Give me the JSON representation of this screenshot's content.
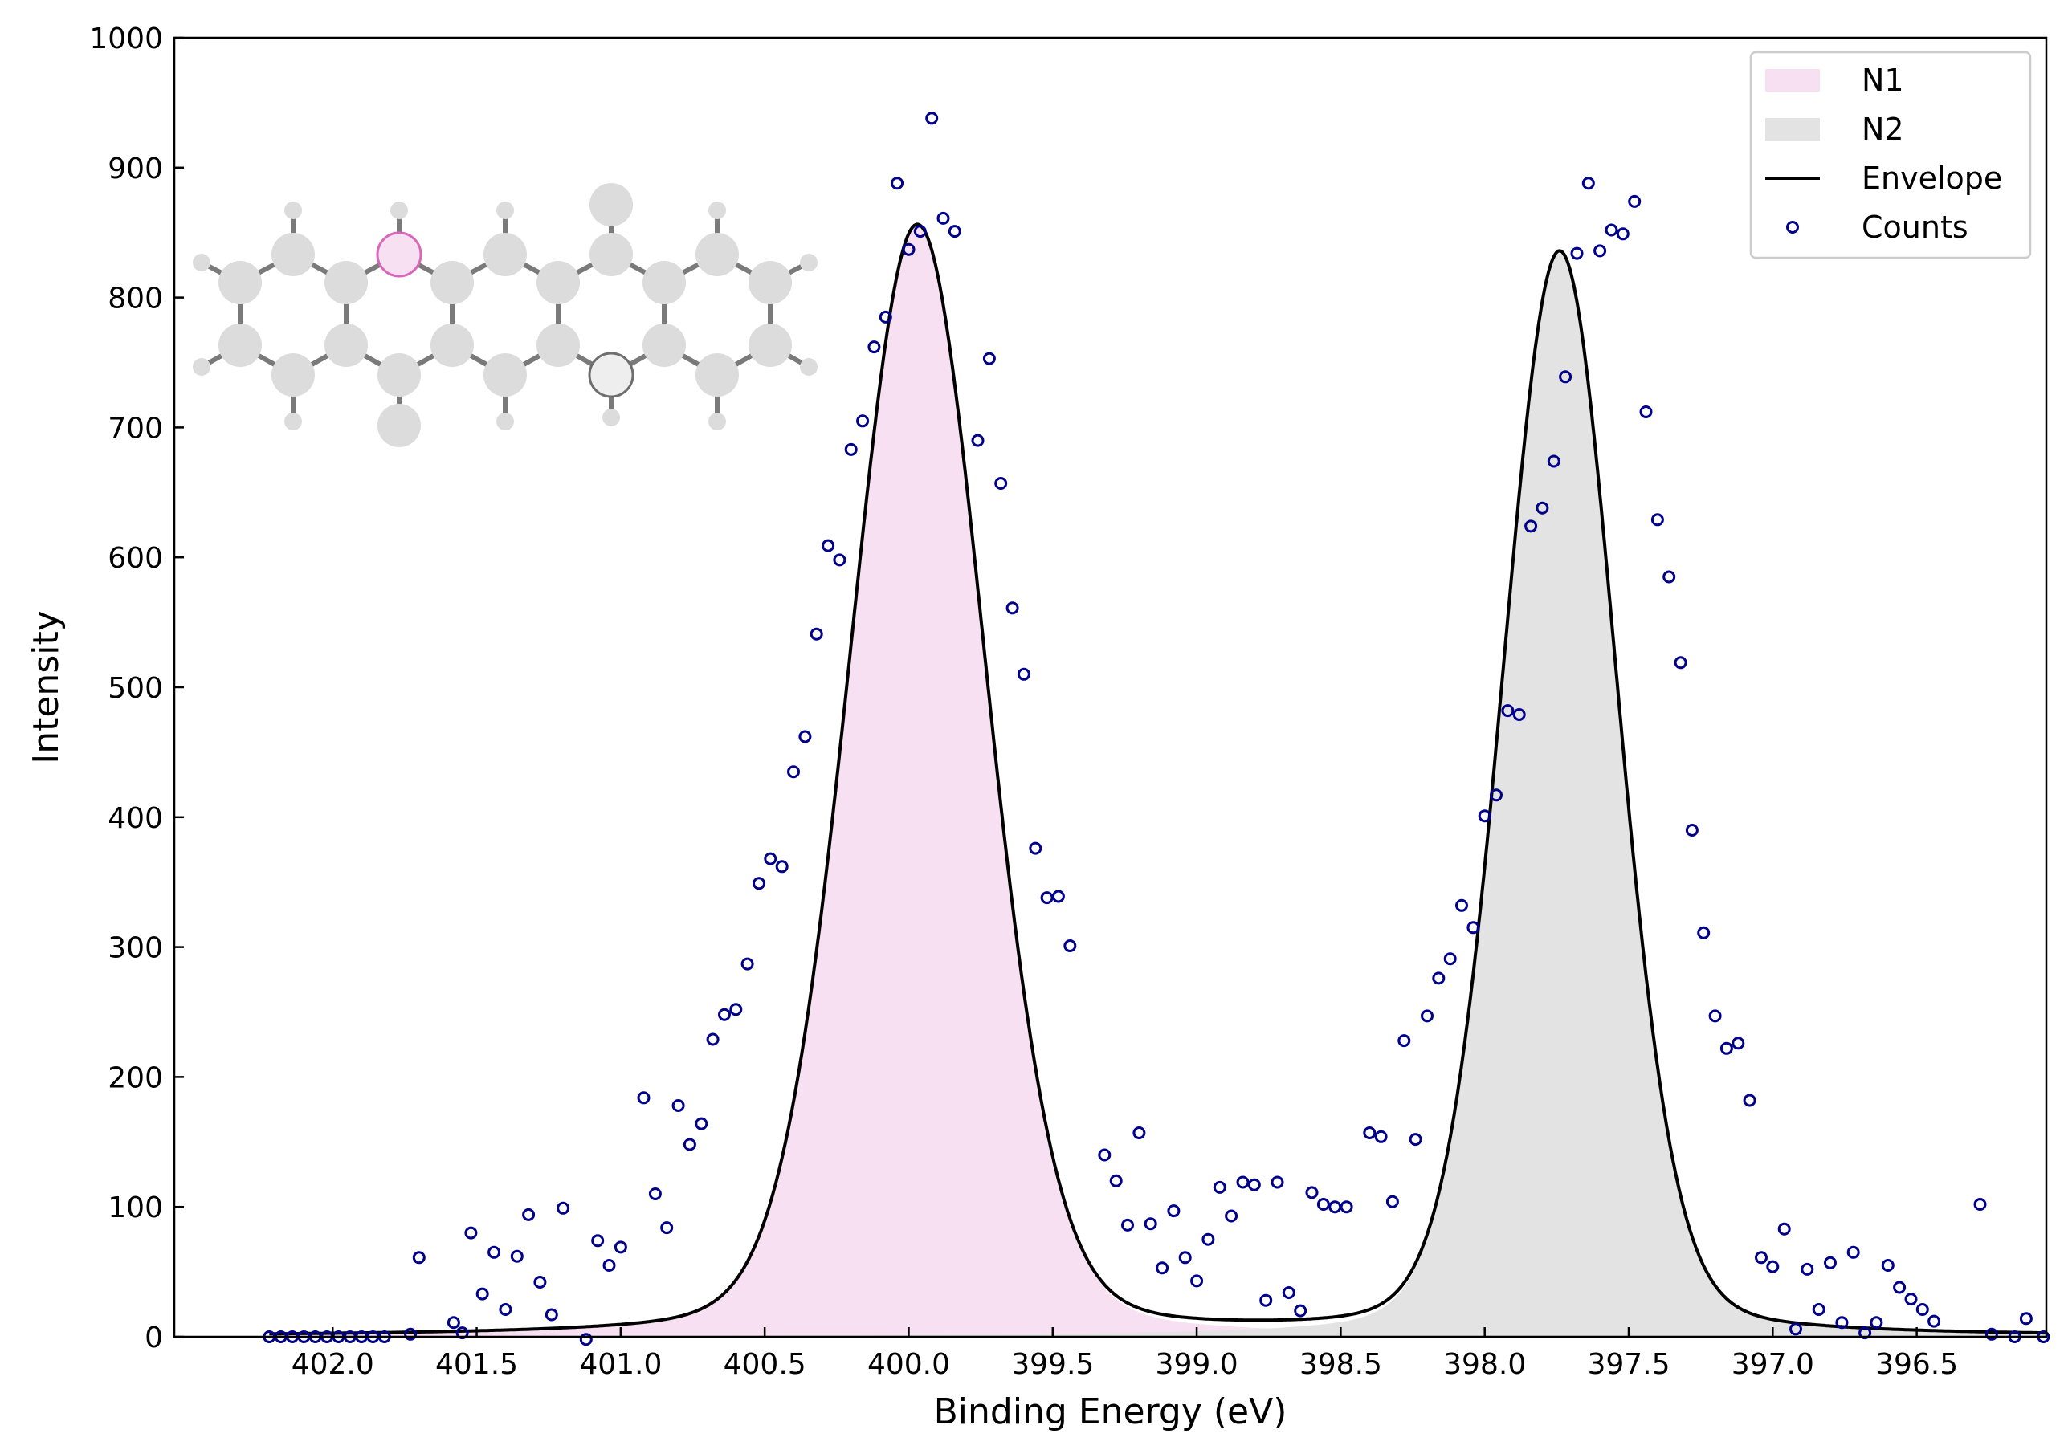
{
  "chart_data": {
    "type": "line",
    "xlabel": "Binding Energy (eV)",
    "ylabel": "Intensity",
    "xlim": [
      402.55,
      396.05
    ],
    "ylim": [
      0,
      1000
    ],
    "x_reversed": true,
    "x_ticks": [
      "402.0",
      "401.5",
      "401.0",
      "400.5",
      "400.0",
      "399.5",
      "399.0",
      "398.5",
      "398.0",
      "397.5",
      "397.0",
      "396.5"
    ],
    "y_ticks": [
      "0",
      "100",
      "200",
      "300",
      "400",
      "500",
      "600",
      "700",
      "800",
      "900",
      "1000"
    ],
    "grid": false,
    "legend_position": "top-right",
    "legend": [
      {
        "label": "N1",
        "kind": "fill",
        "color": "#f7e0f1"
      },
      {
        "label": "N2",
        "kind": "fill",
        "color": "#e3e3e3"
      },
      {
        "label": "Envelope",
        "kind": "line",
        "color": "#000000"
      },
      {
        "label": "Counts",
        "kind": "marker",
        "color": "#00008b"
      }
    ],
    "peaks": [
      {
        "name": "N1",
        "center": 399.97,
        "amplitude": 855,
        "fwhm": 0.56,
        "color": "#f7e0f1"
      },
      {
        "name": "N2",
        "center": 397.74,
        "amplitude": 834,
        "fwhm": 0.47,
        "color": "#e3e3e3"
      }
    ],
    "envelope_x_range": [
      402.22,
      396.05
    ],
    "counts": [
      [
        402.22,
        0
      ],
      [
        402.18,
        0
      ],
      [
        402.14,
        0
      ],
      [
        402.1,
        0
      ],
      [
        402.06,
        0
      ],
      [
        402.02,
        0
      ],
      [
        401.98,
        0
      ],
      [
        401.94,
        0
      ],
      [
        401.9,
        0
      ],
      [
        401.86,
        0
      ],
      [
        401.82,
        0
      ],
      [
        401.73,
        2
      ],
      [
        401.7,
        61
      ],
      [
        401.58,
        11
      ],
      [
        401.55,
        3
      ],
      [
        401.52,
        80
      ],
      [
        401.48,
        33
      ],
      [
        401.44,
        65
      ],
      [
        401.4,
        21
      ],
      [
        401.36,
        62
      ],
      [
        401.32,
        94
      ],
      [
        401.28,
        42
      ],
      [
        401.24,
        17
      ],
      [
        401.2,
        99
      ],
      [
        401.12,
        -2
      ],
      [
        401.08,
        74
      ],
      [
        401.04,
        55
      ],
      [
        401.0,
        69
      ],
      [
        400.92,
        184
      ],
      [
        400.88,
        110
      ],
      [
        400.84,
        84
      ],
      [
        400.8,
        178
      ],
      [
        400.76,
        148
      ],
      [
        400.72,
        164
      ],
      [
        400.68,
        229
      ],
      [
        400.64,
        248
      ],
      [
        400.6,
        252
      ],
      [
        400.56,
        287
      ],
      [
        400.52,
        349
      ],
      [
        400.48,
        368
      ],
      [
        400.44,
        362
      ],
      [
        400.4,
        435
      ],
      [
        400.36,
        462
      ],
      [
        400.32,
        541
      ],
      [
        400.28,
        609
      ],
      [
        400.24,
        598
      ],
      [
        400.2,
        683
      ],
      [
        400.16,
        705
      ],
      [
        400.12,
        762
      ],
      [
        400.08,
        785
      ],
      [
        400.04,
        888
      ],
      [
        400.0,
        837
      ],
      [
        399.96,
        851
      ],
      [
        399.92,
        938
      ],
      [
        399.88,
        861
      ],
      [
        399.84,
        851
      ],
      [
        399.76,
        690
      ],
      [
        399.72,
        753
      ],
      [
        399.68,
        657
      ],
      [
        399.64,
        561
      ],
      [
        399.6,
        510
      ],
      [
        399.56,
        376
      ],
      [
        399.52,
        338
      ],
      [
        399.48,
        339
      ],
      [
        399.44,
        301
      ],
      [
        399.32,
        140
      ],
      [
        399.28,
        120
      ],
      [
        399.24,
        86
      ],
      [
        399.2,
        157
      ],
      [
        399.16,
        87
      ],
      [
        399.12,
        53
      ],
      [
        399.08,
        97
      ],
      [
        399.04,
        61
      ],
      [
        399.0,
        43
      ],
      [
        398.96,
        75
      ],
      [
        398.92,
        115
      ],
      [
        398.88,
        93
      ],
      [
        398.84,
        119
      ],
      [
        398.8,
        117
      ],
      [
        398.76,
        28
      ],
      [
        398.72,
        119
      ],
      [
        398.68,
        34
      ],
      [
        398.64,
        20
      ],
      [
        398.6,
        111
      ],
      [
        398.56,
        102
      ],
      [
        398.52,
        100
      ],
      [
        398.48,
        100
      ],
      [
        398.4,
        157
      ],
      [
        398.36,
        154
      ],
      [
        398.32,
        104
      ],
      [
        398.28,
        228
      ],
      [
        398.24,
        152
      ],
      [
        398.2,
        247
      ],
      [
        398.16,
        276
      ],
      [
        398.12,
        291
      ],
      [
        398.08,
        332
      ],
      [
        398.04,
        315
      ],
      [
        398.0,
        401
      ],
      [
        397.96,
        417
      ],
      [
        397.92,
        482
      ],
      [
        397.88,
        479
      ],
      [
        397.84,
        624
      ],
      [
        397.8,
        638
      ],
      [
        397.76,
        674
      ],
      [
        397.72,
        739
      ],
      [
        397.68,
        834
      ],
      [
        397.64,
        888
      ],
      [
        397.6,
        836
      ],
      [
        397.56,
        852
      ],
      [
        397.52,
        849
      ],
      [
        397.48,
        874
      ],
      [
        397.44,
        712
      ],
      [
        397.4,
        629
      ],
      [
        397.36,
        585
      ],
      [
        397.32,
        519
      ],
      [
        397.28,
        390
      ],
      [
        397.24,
        311
      ],
      [
        397.2,
        247
      ],
      [
        397.16,
        222
      ],
      [
        397.12,
        226
      ],
      [
        397.08,
        182
      ],
      [
        397.04,
        61
      ],
      [
        397.0,
        54
      ],
      [
        396.96,
        83
      ],
      [
        396.92,
        6
      ],
      [
        396.88,
        52
      ],
      [
        396.84,
        21
      ],
      [
        396.8,
        57
      ],
      [
        396.76,
        11
      ],
      [
        396.72,
        65
      ],
      [
        396.68,
        3
      ],
      [
        396.64,
        11
      ],
      [
        396.6,
        55
      ],
      [
        396.56,
        38
      ],
      [
        396.52,
        29
      ],
      [
        396.48,
        21
      ],
      [
        396.44,
        12
      ],
      [
        396.28,
        102
      ],
      [
        396.24,
        2
      ],
      [
        396.16,
        0
      ],
      [
        396.12,
        14
      ],
      [
        396.06,
        0
      ]
    ]
  },
  "molecule": {
    "atom_color": "#dcdcdc",
    "bond_color": "#7a7a7a",
    "n1_color": "#f7e0f1",
    "n1_edge": "#d967b8",
    "n2_edge": "#6e6e6e"
  }
}
